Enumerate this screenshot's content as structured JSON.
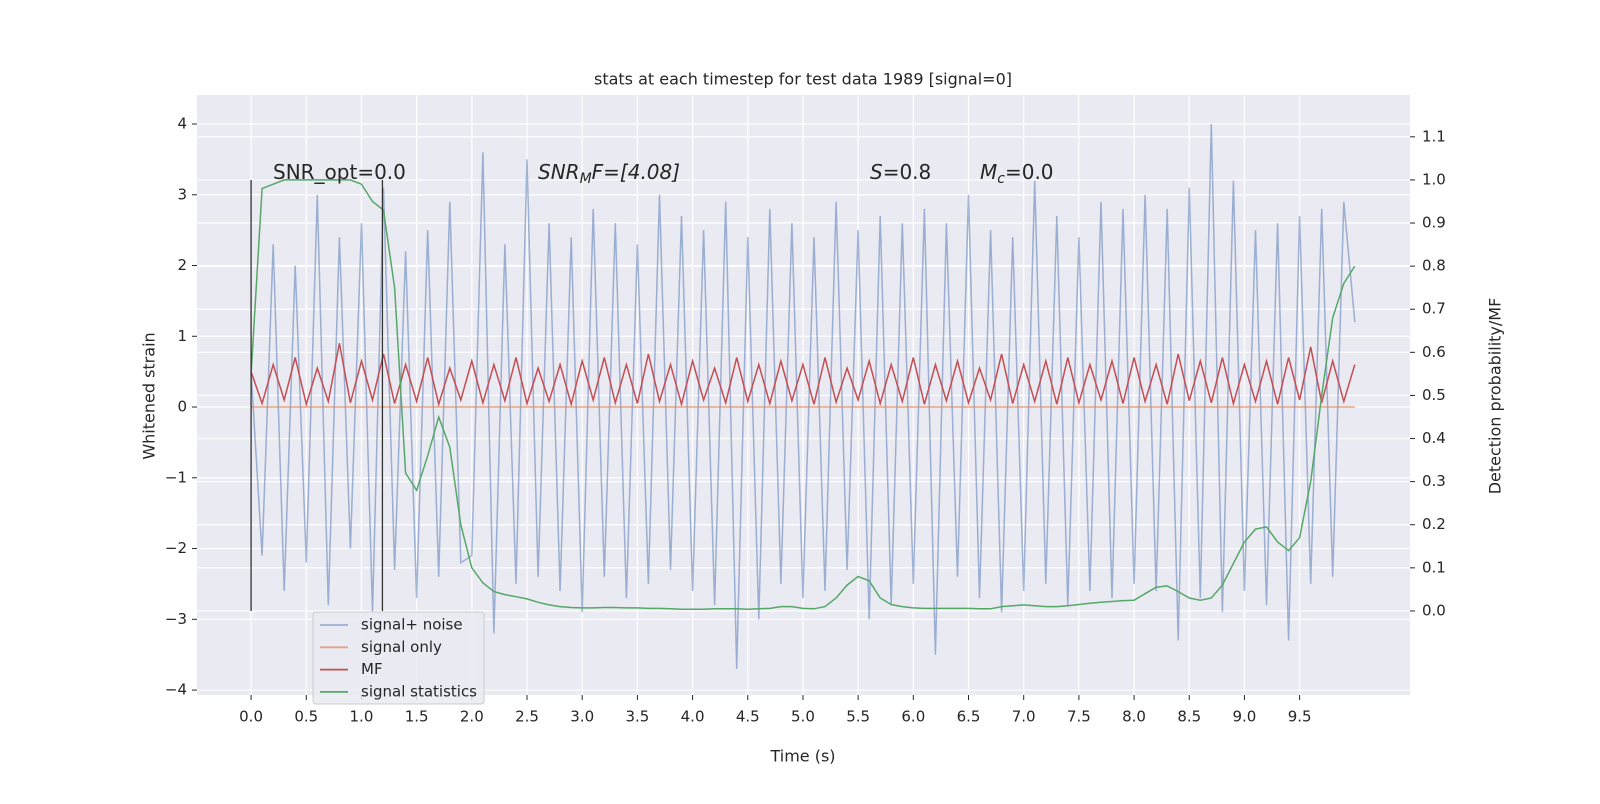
{
  "chart_data": {
    "type": "line",
    "title": "stats at each timestep for test data 1989 [signal=0]",
    "xlabel": "Time (s)",
    "ylabel": "Whitened strain",
    "y2label": "Detection probability/MF",
    "xlim": [
      -0.49,
      10.5
    ],
    "ylim": [
      -4.07,
      4.41
    ],
    "y2lim": [
      -0.195,
      1.197
    ],
    "grid": true,
    "xticks": [
      {
        "value": 0,
        "label": "0.0"
      },
      {
        "value": 0.5,
        "label": "0.5"
      },
      {
        "value": 1,
        "label": "1.0"
      },
      {
        "value": 1.5,
        "label": "1.5"
      },
      {
        "value": 2,
        "label": "2.0"
      },
      {
        "value": 2.5,
        "label": "2.5"
      },
      {
        "value": 3,
        "label": "3.0"
      },
      {
        "value": 3.5,
        "label": "3.5"
      },
      {
        "value": 4,
        "label": "4.0"
      },
      {
        "value": 4.5,
        "label": "4.5"
      },
      {
        "value": 5,
        "label": "5.0"
      },
      {
        "value": 5.5,
        "label": "5.5"
      },
      {
        "value": 6,
        "label": "6.0"
      },
      {
        "value": 6.5,
        "label": "6.5"
      },
      {
        "value": 7,
        "label": "7.0"
      },
      {
        "value": 7.5,
        "label": "7.5"
      },
      {
        "value": 8,
        "label": "8.0"
      },
      {
        "value": 8.5,
        "label": "8.5"
      },
      {
        "value": 9,
        "label": "9.0"
      },
      {
        "value": 9.5,
        "label": "9.5"
      }
    ],
    "yticks": [
      {
        "value": -4,
        "label": "−4"
      },
      {
        "value": -3,
        "label": "−3"
      },
      {
        "value": -2,
        "label": "−2"
      },
      {
        "value": -1,
        "label": "−1"
      },
      0,
      1,
      2,
      3,
      4
    ],
    "y2ticks": [
      {
        "value": 0,
        "label": "0.0"
      },
      {
        "value": 0.1,
        "label": "0.1"
      },
      {
        "value": 0.2,
        "label": "0.2"
      },
      {
        "value": 0.3,
        "label": "0.3"
      },
      {
        "value": 0.4,
        "label": "0.4"
      },
      {
        "value": 0.5,
        "label": "0.5"
      },
      {
        "value": 0.6,
        "label": "0.6"
      },
      {
        "value": 0.7,
        "label": "0.7"
      },
      {
        "value": 0.8,
        "label": "0.8"
      },
      {
        "value": 0.9,
        "label": "0.9"
      },
      {
        "value": 1,
        "label": "1.0"
      },
      {
        "value": 1.1,
        "label": "1.1"
      }
    ],
    "vlines": [
      0,
      1.19
    ],
    "annotations": [
      {
        "main": "SNR_opt=0.0"
      },
      {
        "main": "SNR",
        "sub": "M",
        "rest": "F=[4.08]",
        "italic": true
      },
      {
        "main": "S",
        "rest": "=0.8",
        "italic": true
      },
      {
        "main": "M",
        "sub": "c",
        "rest": "=0.0",
        "italic": true
      }
    ],
    "x": [
      0,
      0.1,
      0.2,
      0.3,
      0.4,
      0.5,
      0.6,
      0.7,
      0.8,
      0.9,
      1,
      1.1,
      1.2,
      1.3,
      1.4,
      1.5,
      1.6,
      1.7,
      1.8,
      1.9,
      2,
      2.1,
      2.2,
      2.3,
      2.4,
      2.5,
      2.6,
      2.7,
      2.8,
      2.9,
      3,
      3.1,
      3.2,
      3.3,
      3.4,
      3.5,
      3.6,
      3.7,
      3.8,
      3.9,
      4,
      4.1,
      4.2,
      4.3,
      4.4,
      4.5,
      4.6,
      4.7,
      4.8,
      4.9,
      5,
      5.1,
      5.2,
      5.3,
      5.4,
      5.5,
      5.6,
      5.7,
      5.8,
      5.9,
      6,
      6.1,
      6.2,
      6.3,
      6.4,
      6.5,
      6.6,
      6.7,
      6.8,
      6.9,
      7,
      7.1,
      7.2,
      7.3,
      7.4,
      7.5,
      7.6,
      7.7,
      7.8,
      7.9,
      8,
      8.1,
      8.2,
      8.3,
      8.4,
      8.5,
      8.6,
      8.7,
      8.8,
      8.9,
      9,
      9.1,
      9.2,
      9.3,
      9.4,
      9.5,
      9.6,
      9.7,
      9.8,
      9.9,
      10
    ],
    "series": [
      {
        "name": "signal+ noise",
        "color": "#4c72b0",
        "values": [
          0.5,
          -2.1,
          2.3,
          -2.6,
          2.0,
          -2.2,
          3.0,
          -2.8,
          2.4,
          -2.0,
          2.6,
          -2.9,
          3.1,
          -2.3,
          2.2,
          -2.7,
          2.5,
          -2.4,
          2.9,
          -2.2,
          -2.1,
          3.6,
          -3.2,
          2.3,
          -2.5,
          3.5,
          -2.4,
          2.6,
          -2.6,
          2.4,
          -2.9,
          2.8,
          -2.4,
          2.6,
          -2.7,
          2.3,
          -2.5,
          3.0,
          -2.3,
          2.7,
          -2.6,
          2.5,
          -2.8,
          2.9,
          -3.7,
          2.4,
          -3.0,
          2.8,
          -2.5,
          2.6,
          -2.7,
          2.4,
          -2.6,
          2.9,
          -2.3,
          2.5,
          -3.0,
          2.7,
          -2.8,
          2.6,
          -2.5,
          2.8,
          -3.5,
          2.6,
          -2.4,
          3.0,
          -2.7,
          2.5,
          -2.9,
          2.4,
          -2.6,
          3.2,
          -2.5,
          2.7,
          -2.8,
          2.4,
          -2.6,
          2.9,
          -2.7,
          2.8,
          -2.5,
          3.0,
          -2.6,
          2.8,
          -3.3,
          3.1,
          -2.7,
          4.0,
          -2.9,
          3.2,
          -2.6,
          2.5,
          -2.8,
          2.6,
          -3.3,
          2.7,
          -2.5,
          2.8,
          -2.4,
          2.9,
          1.2
        ]
      },
      {
        "name": "signal only",
        "color": "#dd8452",
        "values": [
          0,
          0,
          0,
          0,
          0,
          0,
          0,
          0,
          0,
          0,
          0,
          0,
          0,
          0,
          0,
          0,
          0,
          0,
          0,
          0,
          0,
          0,
          0,
          0,
          0,
          0,
          0,
          0,
          0,
          0,
          0,
          0,
          0,
          0,
          0,
          0,
          0,
          0,
          0,
          0,
          0,
          0,
          0,
          0,
          0,
          0,
          0,
          0,
          0,
          0,
          0,
          0,
          0,
          0,
          0,
          0,
          0,
          0,
          0,
          0,
          0,
          0,
          0,
          0,
          0,
          0,
          0,
          0,
          0,
          0,
          0,
          0,
          0,
          0,
          0,
          0,
          0,
          0,
          0,
          0,
          0,
          0,
          0,
          0,
          0,
          0,
          0,
          0,
          0,
          0,
          0,
          0,
          0,
          0,
          0,
          0,
          0,
          0,
          0,
          0,
          0
        ]
      },
      {
        "name": "MF",
        "color": "#c44e52",
        "values": [
          0.5,
          0.05,
          0.6,
          0.1,
          0.7,
          0.04,
          0.55,
          0.08,
          0.9,
          0.06,
          0.65,
          0.1,
          0.75,
          0.05,
          0.6,
          0.08,
          0.7,
          0.04,
          0.55,
          0.1,
          0.65,
          0.06,
          0.6,
          0.09,
          0.7,
          0.05,
          0.55,
          0.08,
          0.6,
          0.04,
          0.65,
          0.1,
          0.7,
          0.06,
          0.6,
          0.05,
          0.75,
          0.08,
          0.6,
          0.04,
          0.65,
          0.1,
          0.55,
          0.06,
          0.7,
          0.08,
          0.6,
          0.05,
          0.65,
          0.09,
          0.6,
          0.04,
          0.7,
          0.07,
          0.55,
          0.1,
          0.65,
          0.05,
          0.6,
          0.08,
          0.7,
          0.04,
          0.6,
          0.09,
          0.65,
          0.06,
          0.55,
          0.1,
          0.75,
          0.05,
          0.6,
          0.08,
          0.65,
          0.04,
          0.7,
          0.06,
          0.6,
          0.1,
          0.65,
          0.05,
          0.7,
          0.08,
          0.6,
          0.04,
          0.75,
          0.09,
          0.65,
          0.06,
          0.7,
          0.05,
          0.6,
          0.08,
          0.65,
          0.04,
          0.7,
          0.1,
          0.85,
          0.06,
          0.65,
          0.08,
          0.6
        ]
      },
      {
        "name": "signal statistics",
        "color": "#55a868",
        "axis": "y2",
        "values": [
          0.55,
          0.98,
          0.99,
          1.0,
          1.0,
          1.0,
          1.0,
          1.0,
          1.0,
          1.0,
          0.99,
          0.95,
          0.93,
          0.75,
          0.32,
          0.28,
          0.36,
          0.45,
          0.38,
          0.2,
          0.1,
          0.065,
          0.045,
          0.038,
          0.033,
          0.028,
          0.02,
          0.014,
          0.01,
          0.008,
          0.007,
          0.007,
          0.008,
          0.008,
          0.007,
          0.007,
          0.006,
          0.006,
          0.005,
          0.004,
          0.004,
          0.004,
          0.005,
          0.005,
          0.005,
          0.004,
          0.005,
          0.006,
          0.01,
          0.01,
          0.006,
          0.005,
          0.01,
          0.03,
          0.06,
          0.08,
          0.07,
          0.03,
          0.015,
          0.01,
          0.007,
          0.006,
          0.006,
          0.006,
          0.006,
          0.006,
          0.005,
          0.005,
          0.01,
          0.012,
          0.014,
          0.012,
          0.01,
          0.01,
          0.012,
          0.015,
          0.018,
          0.02,
          0.022,
          0.024,
          0.025,
          0.04,
          0.055,
          0.058,
          0.045,
          0.03,
          0.025,
          0.03,
          0.06,
          0.11,
          0.16,
          0.19,
          0.195,
          0.16,
          0.14,
          0.17,
          0.3,
          0.5,
          0.68,
          0.76,
          0.8
        ]
      }
    ]
  }
}
